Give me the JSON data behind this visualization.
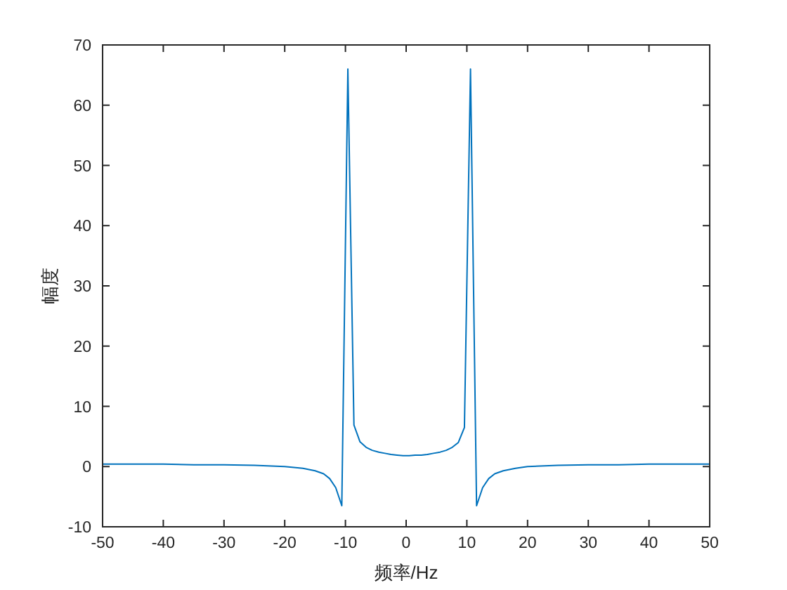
{
  "chart_data": {
    "type": "line",
    "xlabel": "频率/Hz",
    "ylabel": "幅度",
    "x": [
      -50,
      -45,
      -40,
      -35,
      -30,
      -25,
      -20,
      -17,
      -15,
      -13.6,
      -12.6,
      -11.6,
      -10.6,
      -9.6,
      -8.6,
      -7.6,
      -6.6,
      -5.6,
      -4.5,
      -3.5,
      -2.5,
      -1.5,
      -0.5,
      0.5,
      1.5,
      2.5,
      3.5,
      4.5,
      5.6,
      6.6,
      7.6,
      8.6,
      9.6,
      10.6,
      11.6,
      12.6,
      13.6,
      14.6,
      16,
      18,
      20,
      25,
      30,
      35,
      40,
      45,
      50
    ],
    "series": [
      {
        "color": "#0072bd",
        "values": [
          0.4,
          0.4,
          0.4,
          0.3,
          0.3,
          0.2,
          0,
          -0.3,
          -0.7,
          -1.2,
          -2,
          -3.5,
          -6.5,
          66,
          6.9,
          4.1,
          3.2,
          2.7,
          2.4,
          2.2,
          2,
          1.9,
          1.8,
          1.8,
          1.9,
          1.9,
          2,
          2.2,
          2.4,
          2.7,
          3.2,
          4,
          6.5,
          66,
          -6.5,
          -3.5,
          -2,
          -1.2,
          -0.7,
          -0.3,
          0,
          0.2,
          0.3,
          0.3,
          0.4,
          0.4,
          0.4
        ]
      }
    ],
    "xlim": [
      -50,
      50
    ],
    "ylim": [
      -10,
      70
    ],
    "xticks": [
      -50,
      -40,
      -30,
      -20,
      -10,
      0,
      10,
      20,
      30,
      40,
      50
    ],
    "yticks": [
      -10,
      0,
      10,
      20,
      30,
      40,
      50,
      60,
      70
    ],
    "line_style": "solid"
  }
}
